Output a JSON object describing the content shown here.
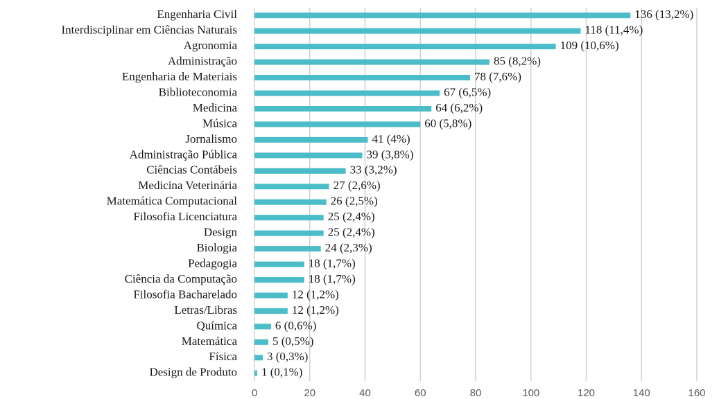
{
  "chart_data": {
    "type": "bar",
    "orientation": "horizontal",
    "categories": [
      "Engenharia Civil",
      "Interdisciplinar em Ciências Naturais",
      "Agronomia",
      "Administração",
      "Engenharia de Materiais",
      "Biblioteconomia",
      "Medicina",
      "Música",
      "Jornalismo",
      "Administração Pública",
      "Ciências Contábeis",
      "Medicina Veterinária",
      "Matemática Computacional",
      "Filosofia Licenciatura",
      "Design",
      "Biologia",
      "Pedagogia",
      "Ciência da Computação",
      "Filosofia Bacharelado",
      "Letras/Libras",
      "Química",
      "Matemática",
      "Física",
      "Design de Produto"
    ],
    "values": [
      136,
      118,
      109,
      85,
      78,
      67,
      64,
      60,
      41,
      39,
      33,
      27,
      26,
      25,
      25,
      24,
      18,
      18,
      12,
      12,
      6,
      5,
      3,
      1
    ],
    "value_labels": [
      "136 (13,2%)",
      "118 (11,4%)",
      "109 (10,6%)",
      "85 (8,2%)",
      "78 (7,6%)",
      "67 (6,5%)",
      "64 (6,2%)",
      "60 (5,8%)",
      "41 (4%)",
      "39 (3,8%)",
      "33 (3,2%)",
      "27 (2,6%)",
      "26 (2,5%)",
      "25 (2,4%)",
      "25 (2,4%)",
      "24 (2,3%)",
      "18 (1,7%)",
      "18 (1,7%)",
      "12 (1,2%)",
      "12 (1,2%)",
      "6 (0,6%)",
      "5 (0,5%)",
      "3 (0,3%)",
      "1 (0,1%)"
    ],
    "color": "#4bbdc8",
    "xlim": [
      0,
      160
    ],
    "xticks": [
      0,
      20,
      40,
      60,
      80,
      100,
      120,
      140,
      160
    ],
    "grid": true
  }
}
